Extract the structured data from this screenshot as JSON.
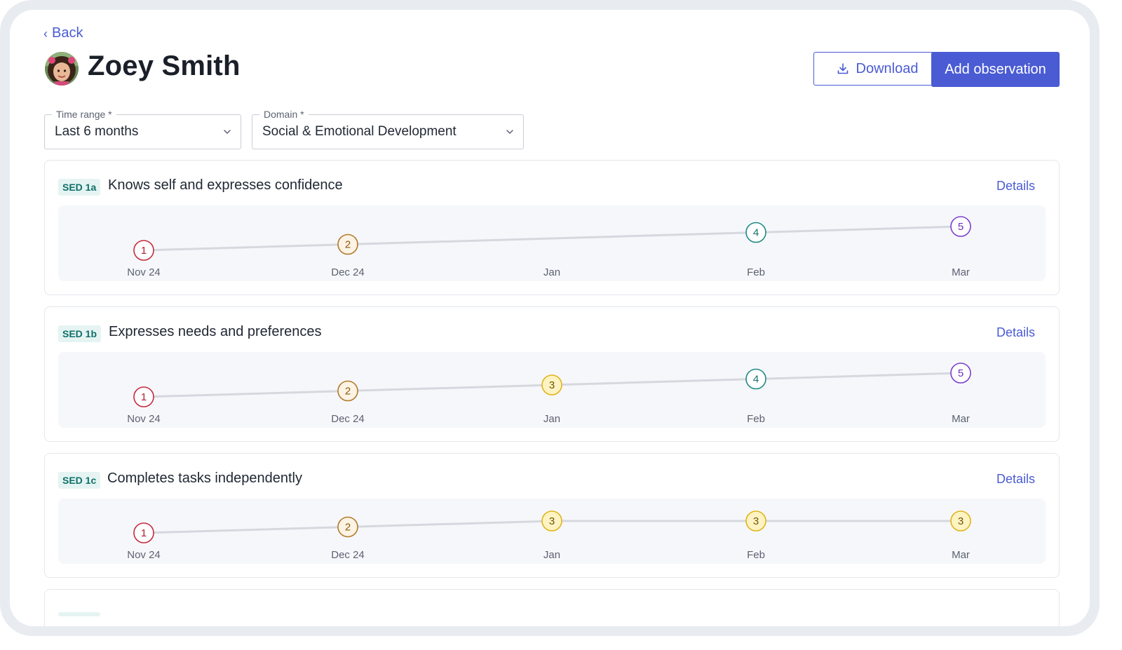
{
  "nav": {
    "back_label": "Back"
  },
  "header": {
    "child_name": "Zoey Smith",
    "download_label": "Download",
    "add_observation_label": "Add observation"
  },
  "filters": {
    "time_range": {
      "label": "Time range *",
      "value": "Last 6 months"
    },
    "domain": {
      "label": "Domain *",
      "value": "Social & Emotional Development"
    }
  },
  "level_colors": {
    "1": {
      "stroke": "#c62b3b",
      "fill": "#ffffff",
      "text": "#b0202f"
    },
    "2": {
      "stroke": "#b07a2b",
      "fill": "#fcf3e4",
      "text": "#8a5a14"
    },
    "3": {
      "stroke": "#e0b418",
      "fill": "#fff3c2",
      "text": "#6e5406"
    },
    "4": {
      "stroke": "#1f8a82",
      "fill": "#ffffff",
      "text": "#17706a"
    },
    "5": {
      "stroke": "#7a3fd1",
      "fill": "#ffffff",
      "text": "#6a2fc0"
    }
  },
  "skills": [
    {
      "code": "SED 1a",
      "name": "Knows self and expresses confidence",
      "details_label": "Details",
      "chart_data": {
        "type": "line",
        "x": [
          "Nov 24",
          "Dec 24",
          "Jan",
          "Feb",
          "Mar"
        ],
        "values": [
          1,
          2,
          null,
          4,
          5
        ],
        "ylim": [
          1,
          5
        ]
      }
    },
    {
      "code": "SED 1b",
      "name": "Expresses needs and preferences",
      "details_label": "Details",
      "chart_data": {
        "type": "line",
        "x": [
          "Nov 24",
          "Dec 24",
          "Jan",
          "Feb",
          "Mar"
        ],
        "values": [
          1,
          2,
          3,
          4,
          5
        ],
        "ylim": [
          1,
          5
        ]
      }
    },
    {
      "code": "SED 1c",
      "name": "Completes tasks independently",
      "details_label": "Details",
      "chart_data": {
        "type": "line",
        "x": [
          "Nov 24",
          "Dec 24",
          "Jan",
          "Feb",
          "Mar"
        ],
        "values": [
          1,
          2,
          3,
          3,
          3
        ],
        "ylim": [
          1,
          5
        ]
      }
    }
  ]
}
